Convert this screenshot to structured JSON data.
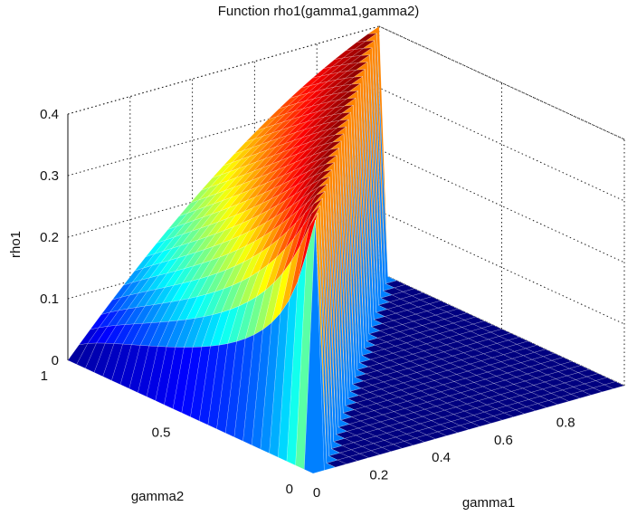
{
  "chart_data": {
    "type": "surface",
    "title": "Function rho1(gamma1,gamma2)",
    "xlabel": "gamma1",
    "ylabel": "gamma2",
    "zlabel": "rho1",
    "xlim": [
      0,
      1
    ],
    "ylim": [
      0,
      1
    ],
    "zlim": [
      0,
      0.4
    ],
    "x_ticks": [
      "0",
      "0.2",
      "0.4",
      "0.6",
      "0.8"
    ],
    "y_ticks": [
      "0",
      "0.5",
      "1"
    ],
    "z_ticks": [
      "0",
      "0.1",
      "0.2",
      "0.3",
      "0.4"
    ],
    "grid": true,
    "colormap": "jet",
    "surface_description_values": {
      "rho1_at_gamma1_0_gamma2_1": 0.0,
      "rho1_max": 0.4,
      "rho1_region_gamma2_lt_gamma1": 0.0
    },
    "colors": {
      "low": "#00008f",
      "mid": "#7fff7f",
      "high": "#800000"
    }
  }
}
